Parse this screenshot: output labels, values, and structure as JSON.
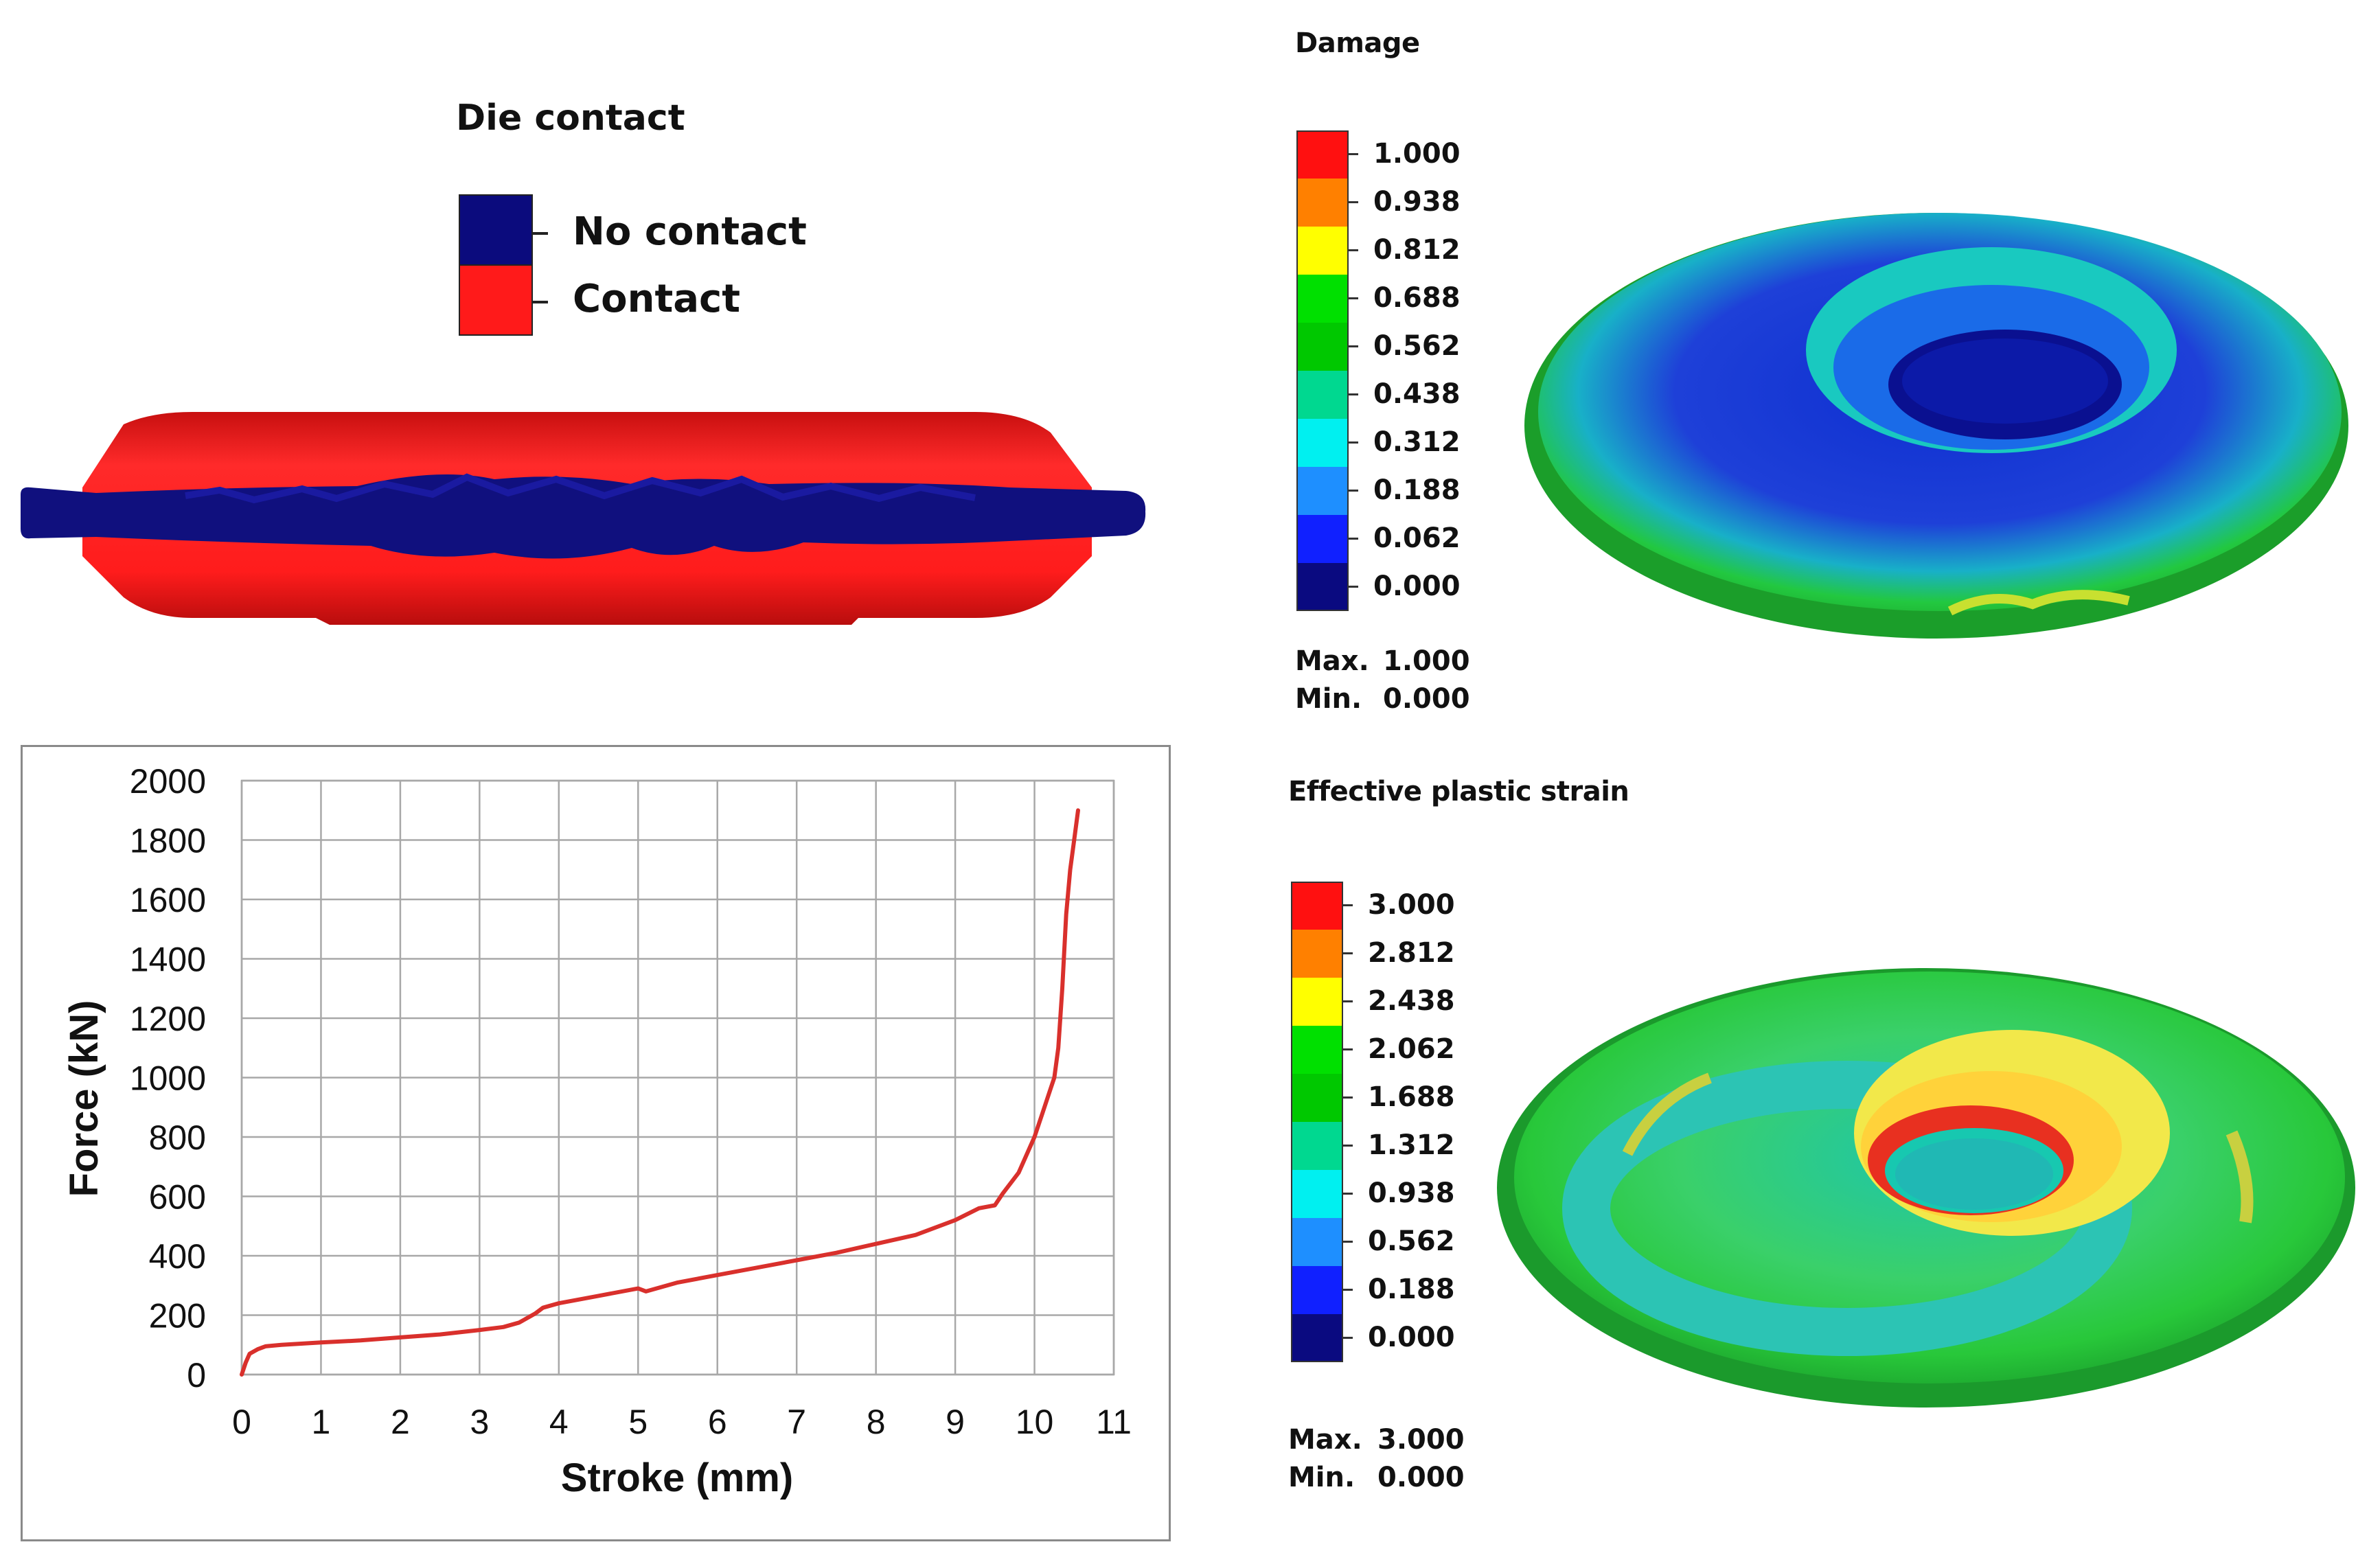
{
  "die_contact": {
    "title": "Die contact",
    "legend": [
      {
        "label": "No contact",
        "color": "#0b0b7d"
      },
      {
        "label": "Contact",
        "color": "#ff1a1a"
      }
    ]
  },
  "damage_panel": {
    "title": "Damage",
    "scale_values": [
      "1.000",
      "0.938",
      "0.812",
      "0.688",
      "0.562",
      "0.438",
      "0.312",
      "0.188",
      "0.062",
      "0.000"
    ],
    "scale_colors": [
      "#ff1010",
      "#ff8000",
      "#ffff00",
      "#00e000",
      "#00c800",
      "#00d890",
      "#00f0f0",
      "#1e8fff",
      "#1020ff",
      "#0a0a80"
    ],
    "max_label": "Max.",
    "max_value": "1.000",
    "min_label": "Min.",
    "min_value": "0.000"
  },
  "strain_panel": {
    "title": "Effective plastic strain",
    "scale_values": [
      "3.000",
      "2.812",
      "2.438",
      "2.062",
      "1.688",
      "1.312",
      "0.938",
      "0.562",
      "0.188",
      "0.000"
    ],
    "scale_colors": [
      "#ff1010",
      "#ff8000",
      "#ffff00",
      "#00e000",
      "#00c800",
      "#00d890",
      "#00f0f0",
      "#1e8fff",
      "#1020ff",
      "#0a0a80"
    ],
    "max_label": "Max.",
    "max_value": "3.000",
    "min_label": "Min.",
    "min_value": "0.000"
  },
  "chart_data": {
    "type": "line",
    "title": "",
    "xlabel": "Stroke (mm)",
    "ylabel": "Force (kN)",
    "xlim": [
      0,
      11
    ],
    "ylim": [
      0,
      2000
    ],
    "x_ticks": [
      "0",
      "1",
      "2",
      "3",
      "4",
      "5",
      "6",
      "7",
      "8",
      "9",
      "10",
      "11"
    ],
    "y_ticks": [
      "0",
      "200",
      "400",
      "600",
      "800",
      "1000",
      "1200",
      "1400",
      "1600",
      "1800",
      "2000"
    ],
    "grid": true,
    "line_color": "#d9302c",
    "series": [
      {
        "name": "Force",
        "x": [
          0,
          0.05,
          0.1,
          0.2,
          0.3,
          0.5,
          1,
          1.5,
          2,
          2.5,
          3,
          3.3,
          3.5,
          3.7,
          3.8,
          4,
          4.5,
          5,
          5.1,
          5.5,
          6,
          6.5,
          7,
          7.5,
          8,
          8.5,
          9,
          9.3,
          9.5,
          9.6,
          9.8,
          10,
          10.1,
          10.2,
          10.25,
          10.3,
          10.35,
          10.4,
          10.45,
          10.5,
          10.55
        ],
        "y": [
          0,
          40,
          70,
          85,
          95,
          100,
          108,
          115,
          125,
          135,
          150,
          160,
          175,
          205,
          225,
          240,
          265,
          290,
          280,
          310,
          335,
          360,
          385,
          410,
          440,
          470,
          520,
          560,
          570,
          610,
          680,
          800,
          880,
          960,
          1000,
          1100,
          1300,
          1550,
          1700,
          1800,
          1900
        ]
      }
    ]
  }
}
